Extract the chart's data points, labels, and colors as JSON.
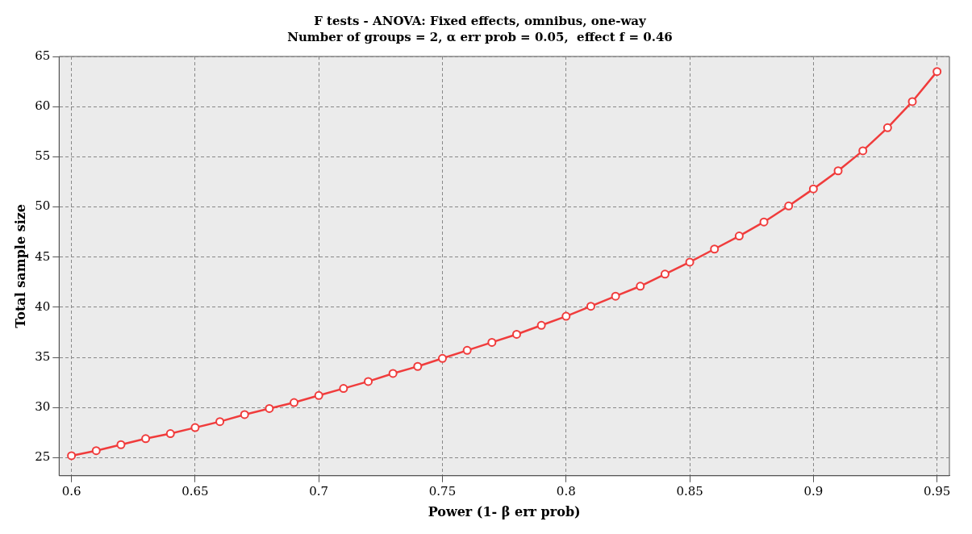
{
  "chart_data": {
    "type": "line",
    "title": "F tests - ANOVA: Fixed effects, omnibus, one-way",
    "subtitle": "Number of groups = 2, α err prob = 0.05,  effect f = 0.46",
    "xlabel": "Power (1- β err prob)",
    "ylabel": "Total sample size",
    "x": [
      0.6,
      0.61,
      0.62,
      0.63,
      0.64,
      0.65,
      0.66,
      0.67,
      0.68,
      0.69,
      0.7,
      0.71,
      0.72,
      0.73,
      0.74,
      0.75,
      0.76,
      0.77,
      0.78,
      0.79,
      0.8,
      0.81,
      0.82,
      0.83,
      0.84,
      0.85,
      0.86,
      0.87,
      0.88,
      0.89,
      0.9,
      0.91,
      0.92,
      0.93,
      0.94,
      0.95
    ],
    "series": [
      {
        "color": "#f03c3c",
        "values": [
          25.2,
          25.7,
          26.3,
          26.9,
          27.4,
          28.0,
          28.6,
          29.3,
          29.9,
          30.5,
          31.2,
          31.9,
          32.6,
          33.4,
          34.1,
          34.9,
          35.7,
          36.5,
          37.3,
          38.2,
          39.1,
          40.1,
          41.1,
          42.1,
          43.3,
          44.5,
          45.8,
          47.1,
          48.5,
          50.1,
          51.8,
          53.6,
          55.6,
          57.9,
          60.5,
          63.5
        ]
      }
    ],
    "xlim": [
      0.595,
      0.955
    ],
    "xticks": [
      0.6,
      0.65,
      0.7,
      0.75,
      0.8,
      0.85,
      0.9,
      0.95
    ],
    "ylim": [
      23.2,
      65
    ],
    "yticks": [
      25,
      30,
      35,
      40,
      45,
      50,
      55,
      60,
      65
    ],
    "grid": true,
    "legend": false,
    "marker": "circle",
    "line_style": "solid"
  }
}
